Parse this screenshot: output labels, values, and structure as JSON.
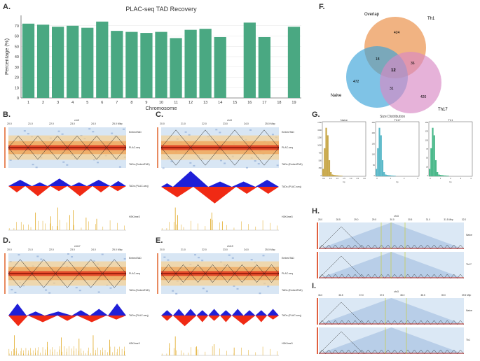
{
  "panels": {
    "a": "A.",
    "b": "B.",
    "c": "C.",
    "d": "D.",
    "e": "E.",
    "f": "F.",
    "g": "G.",
    "h": "H.",
    "i": "I."
  },
  "colors": {
    "bar": "#4aa882",
    "heat_red": "#e03a1e",
    "heat_blue": "#2a5aa8",
    "tad_blue": "#1f1fd8",
    "tad_red": "#f02a14",
    "signal": "#e0a820",
    "venn_overlap": "#ec9a58",
    "venn_naive": "#3aa3d8",
    "venn_th17": "#d888c4"
  },
  "chart_data": [
    {
      "type": "bar",
      "title": "PLAC-seq TAD Recovery",
      "xlabel": "Chromosome",
      "ylabel": "Percentage (%)",
      "categories": [
        "1",
        "2",
        "3",
        "4",
        "5",
        "6",
        "7",
        "8",
        "9",
        "10",
        "11",
        "12",
        "13",
        "14",
        "15",
        "16",
        "17",
        "18",
        "19"
      ],
      "values": [
        72,
        71,
        69,
        70,
        68,
        74,
        65,
        64,
        63,
        64,
        58,
        66,
        67,
        59,
        0,
        73,
        59,
        0,
        69
      ],
      "ylim": [
        0,
        80
      ],
      "yticks": [
        0,
        10,
        20,
        30,
        40,
        50,
        60,
        70
      ],
      "grid": true
    },
    {
      "type": "venn",
      "sets": [
        "Overlap",
        "Th1",
        "Naive",
        "Th17"
      ],
      "regions": {
        "overlap_only": "424",
        "naive_only": "472",
        "th17_only": "420",
        "overlap_naive": "18",
        "overlap_th17": "36",
        "naive_th17": "31",
        "all": "12"
      }
    },
    {
      "type": "histogram",
      "title": "Size Distribution",
      "panels": [
        {
          "name": "Naive",
          "color": "#c8a84a",
          "yticks": [
            "1750",
            "1500",
            "1250",
            "1000",
            "750",
            "500",
            "250",
            "0"
          ],
          "xticks": [
            "0.0",
            "0.5",
            "1.0",
            "1.5",
            "2.0",
            "2.5",
            "3.0"
          ]
        },
        {
          "name": "Th17",
          "color": "#5ab8c8",
          "yticks": [
            "250",
            "200",
            "150",
            "100",
            "50",
            "0"
          ],
          "xticks": [
            "0",
            "1",
            "2",
            "3"
          ]
        },
        {
          "name": "Th1",
          "color": "#4ab88a",
          "yticks": [
            "150",
            "125",
            "100",
            "75",
            "50",
            "25",
            "0"
          ],
          "xticks": [
            "0",
            "1",
            "2",
            "3",
            "4"
          ]
        }
      ]
    }
  ],
  "hic": {
    "b": {
      "chr": "chr3",
      "ticks": [
        "20.0",
        "21.0",
        "22.0",
        "23.0",
        "24.0",
        "25.0 Mbp"
      ],
      "tracks": [
        "EmbedTAD",
        "PLAC-seq",
        "TADs (EmbedTAD)",
        "TADs (PLAC-seq)",
        "H3K4me3"
      ]
    },
    "c": {
      "chr": "chr3",
      "ticks": [
        "20.0",
        "21.0",
        "22.0",
        "23.0",
        "24.0",
        "25.0 Mbp"
      ],
      "tracks": [
        "EmbedTAD",
        "PLAC-seq",
        "TADs (EmbedTAD)",
        "TADs (PLAC-seq)",
        "H3K4me3"
      ]
    },
    "d": {
      "chr": "chr17",
      "ticks": [
        "20.0",
        "21.0",
        "22.0",
        "23.0",
        "24.0",
        "25.0 Mbp"
      ],
      "tracks": [
        "EmbedTAD",
        "PLAC-seq",
        "TADs (EmbedTAD)",
        "TADs (PLAC-seq)",
        "H3K4me3"
      ]
    },
    "e": {
      "chr": "chr19",
      "ticks": [
        "20.0",
        "21.0",
        "22.0",
        "23.0",
        "24.0",
        "25.0 Mbp"
      ],
      "tracks": [
        "EmbedTAD",
        "PLAC-seq",
        "TADs (EmbedTAD)",
        "TADs (PLAC-seq)",
        "H3K4me3"
      ]
    },
    "h": {
      "chr": "chr3",
      "ticks": [
        "28.0",
        "28.5",
        "29.0",
        "29.5",
        "30.0",
        "30.5",
        "31.0",
        "31.5 Mbp",
        "32.0"
      ],
      "rows": [
        "Naive",
        "Th17"
      ]
    },
    "i": {
      "chr": "chr3",
      "ticks": [
        "36.0",
        "36.5",
        "37.0",
        "37.5",
        "38.0",
        "38.5",
        "39.0",
        "39.5 Mbp"
      ],
      "rows": [
        "Naive",
        "Th1"
      ]
    }
  }
}
